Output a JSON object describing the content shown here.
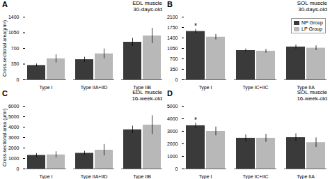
{
  "chart_data": [
    {
      "type": "bar",
      "panel_label": "A",
      "title": "EDL muscle",
      "subtitle": "30-days-old",
      "ylabel": "Cross-sectional area(μm²)",
      "categories": [
        "Type I",
        "Type IIA+IID",
        "Type IIB"
      ],
      "series": [
        {
          "name": "NP Group",
          "color": "#3a3a3a",
          "values": [
            320,
            450,
            840
          ],
          "errors": [
            35,
            55,
            90
          ]
        },
        {
          "name": "LP Group",
          "color": "#b8b8b8",
          "values": [
            470,
            580,
            980
          ],
          "errors": [
            90,
            110,
            170
          ]
        }
      ],
      "ylim": [
        0,
        1400
      ],
      "yticks": [
        0,
        350,
        700,
        1050,
        1400
      ],
      "grid": false
    },
    {
      "type": "bar",
      "panel_label": "B",
      "title": "SOL muscle",
      "subtitle": "30-days-old",
      "categories": [
        "Type I",
        "Type IC+IIC",
        "Type IIA"
      ],
      "series": [
        {
          "name": "NP Group",
          "color": "#3a3a3a",
          "values": [
            1620,
            980,
            1100
          ],
          "errors": [
            70,
            55,
            70
          ]
        },
        {
          "name": "LP Group",
          "color": "#b8b8b8",
          "values": [
            1430,
            960,
            1060
          ],
          "errors": [
            90,
            65,
            80
          ]
        }
      ],
      "annotations": [
        {
          "text": "*",
          "category": "Type I",
          "series": "NP Group"
        }
      ],
      "ylim": [
        0,
        2100
      ],
      "yticks": [
        0,
        350,
        700,
        1050,
        1400,
        1750,
        2100
      ],
      "grid": false,
      "legend": "upper right"
    },
    {
      "type": "bar",
      "panel_label": "C",
      "title": "EDL muscle",
      "subtitle": "16-week-old",
      "ylabel": "Cross-sectional area (μm²)",
      "categories": [
        "Type I",
        "Type IIA+IID",
        "Type IIB"
      ],
      "series": [
        {
          "name": "NP Group",
          "color": "#3a3a3a",
          "values": [
            1300,
            1500,
            3750
          ],
          "errors": [
            180,
            200,
            350
          ]
        },
        {
          "name": "LP Group",
          "color": "#b8b8b8",
          "values": [
            1350,
            1800,
            4200
          ],
          "errors": [
            300,
            550,
            900
          ]
        }
      ],
      "ylim": [
        0,
        6000
      ],
      "yticks": [
        0,
        1000,
        2000,
        3000,
        4000,
        5000,
        6000
      ],
      "grid": false
    },
    {
      "type": "bar",
      "panel_label": "D",
      "title": "SOL muscle",
      "subtitle": "16-week-old",
      "categories": [
        "Type I",
        "Type IC+IIC",
        "Type IIA"
      ],
      "series": [
        {
          "name": "NP Group",
          "color": "#3a3a3a",
          "values": [
            3450,
            2450,
            2500
          ],
          "errors": [
            200,
            280,
            300
          ]
        },
        {
          "name": "LP Group",
          "color": "#b8b8b8",
          "values": [
            3000,
            2450,
            2100
          ],
          "errors": [
            350,
            320,
            380
          ]
        }
      ],
      "annotations": [
        {
          "text": "*",
          "category": "Type I",
          "series": "NP Group"
        }
      ],
      "ylim": [
        0,
        5000
      ],
      "yticks": [
        0,
        1000,
        2000,
        3000,
        4000,
        5000
      ],
      "grid": false
    }
  ]
}
